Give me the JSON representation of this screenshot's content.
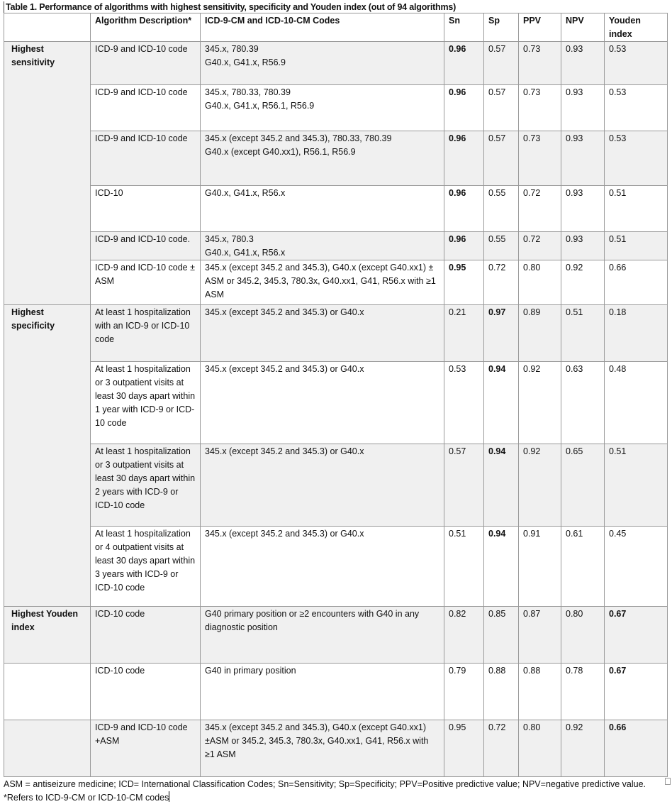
{
  "caption": "Table 1. Performance of algorithms with highest sensitivity, specificity and Youden index (out of 94 algorithms)",
  "headers": [
    "",
    "Algorithm Description*",
    "ICD-9-CM and ICD-10-CM Codes",
    "Sn",
    "Sp",
    "PPV",
    "NPV",
    "Youden index"
  ],
  "groups": [
    {
      "label": "Highest sensitivity",
      "rows": [
        {
          "desc": "ICD-9 and ICD-10 code",
          "codes": [
            "345.x, 780.39",
            "G40.x, G41.x, R56.9"
          ],
          "sn": "0.96",
          "sp": "0.57",
          "ppv": "0.73",
          "npv": "0.93",
          "youden": "0.53",
          "bold": "sn"
        },
        {
          "desc": "ICD-9 and ICD-10 code",
          "codes": [
            "345.x, 780.33, 780.39",
            "G40.x, G41.x, R56.1, R56.9"
          ],
          "sn": "0.96",
          "sp": "0.57",
          "ppv": "0.73",
          "npv": "0.93",
          "youden": "0.53",
          "bold": "sn"
        },
        {
          "desc": "ICD-9 and ICD-10 code",
          "codes": [
            "345.x (except 345.2 and 345.3), 780.33, 780.39",
            "G40.x (except G40.xx1), R56.1, R56.9"
          ],
          "sn": "0.96",
          "sp": "0.57",
          "ppv": "0.73",
          "npv": "0.93",
          "youden": "0.53",
          "bold": "sn"
        },
        {
          "desc": "ICD-10",
          "codes": [
            "G40.x, G41.x, R56.x"
          ],
          "sn": "0.96",
          "sp": "0.55",
          "ppv": "0.72",
          "npv": "0.93",
          "youden": "0.51",
          "bold": "sn"
        },
        {
          "desc": "ICD-9 and ICD-10 code.",
          "codes": [
            "345.x, 780.3",
            "G40.x, G41.x, R56.x"
          ],
          "sn": "0.96",
          "sp": "0.55",
          "ppv": "0.72",
          "npv": "0.93",
          "youden": "0.51",
          "bold": "sn"
        },
        {
          "desc": "ICD-9 and ICD-10 code ± ASM",
          "codes": [
            "345.x (except 345.2 and 345.3), G40.x (except G40.xx1) ± ASM or 345.2, 345.3, 780.3x, G40.xx1, G41, R56.x with ≥1 ASM"
          ],
          "sn": "0.95",
          "sp": "0.72",
          "ppv": "0.80",
          "npv": "0.92",
          "youden": "0.66",
          "bold": "sn"
        }
      ]
    },
    {
      "label": "Highest specificity",
      "rows": [
        {
          "desc": "At least 1 hospitalization with an ICD-9 or ICD-10 code",
          "codes": [
            "345.x (except 345.2 and 345.3) or G40.x"
          ],
          "sn": "0.21",
          "sp": "0.97",
          "ppv": "0.89",
          "npv": "0.51",
          "youden": "0.18",
          "bold": "sp"
        },
        {
          "desc": "At least 1 hospitalization or 3 outpatient visits at least 30 days apart within 1 year with ICD-9 or ICD-10 code",
          "codes": [
            "345.x (except 345.2 and 345.3) or G40.x"
          ],
          "sn": "0.53",
          "sp": "0.94",
          "ppv": "0.92",
          "npv": "0.63",
          "youden": "0.48",
          "bold": "sp"
        },
        {
          "desc": "At least 1 hospitalization or 3 outpatient visits at least 30 days apart within 2 years with ICD-9 or ICD-10 code",
          "codes": [
            "345.x (except 345.2 and 345.3) or G40.x"
          ],
          "sn": "0.57",
          "sp": "0.94",
          "ppv": "0.92",
          "npv": "0.65",
          "youden": "0.51",
          "bold": "sp"
        },
        {
          "desc": "At least 1 hospitalization or 4 outpatient visits at least 30 days apart within 3 years with ICD-9 or ICD-10 code",
          "codes": [
            "345.x (except 345.2 and 345.3) or G40.x"
          ],
          "sn": "0.51",
          "sp": "0.94",
          "ppv": "0.91",
          "npv": "0.61",
          "youden": "0.45",
          "bold": "sp"
        }
      ]
    },
    {
      "label": "Highest Youden index",
      "rows": [
        {
          "desc": "ICD-10 code",
          "codes": [
            "G40 primary position or ≥2 encounters with G40 in any diagnostic position"
          ],
          "sn": "0.82",
          "sp": "0.85",
          "ppv": "0.87",
          "npv": "0.80",
          "youden": "0.67",
          "bold": "youden"
        },
        {
          "desc": "ICD-10 code",
          "codes": [
            "G40 in primary position"
          ],
          "sn": "0.79",
          "sp": "0.88",
          "ppv": "0.88",
          "npv": "0.78",
          "youden": "0.67",
          "bold": "youden"
        },
        {
          "desc": "ICD-9 and ICD-10 code +ASM",
          "codes": [
            "345.x (except 345.2 and 345.3), G40.x (except G40.xx1) ±ASM or 345.2, 345.3, 780.3x, G40.xx1, G41, R56.x with ≥1 ASM"
          ],
          "sn": "0.95",
          "sp": "0.72",
          "ppv": "0.80",
          "npv": "0.92",
          "youden": "0.66",
          "bold": "youden"
        }
      ]
    }
  ],
  "footnote": "ASM = antiseizure medicine; ICD= International Classification Codes; Sn=Sensitivity; Sp=Specificity; PPV=Positive predictive value; NPV=negative predictive value. *Refers to ICD-9-CM or ICD-10-CM codes",
  "colors": {
    "shade": "#f0f0f0",
    "border": "#999999"
  }
}
